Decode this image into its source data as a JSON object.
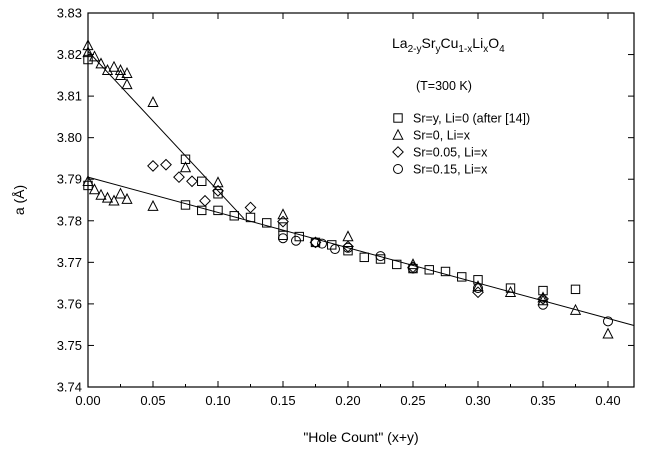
{
  "chart_data": {
    "type": "scatter",
    "xlabel": "\"Hole Count\" (x+y)",
    "ylabel": "a (Å)",
    "xlim": [
      0.0,
      0.42
    ],
    "ylim": [
      3.74,
      3.83
    ],
    "xticks": [
      "0.00",
      "0.05",
      "0.10",
      "0.15",
      "0.20",
      "0.25",
      "0.30",
      "0.35",
      "0.40"
    ],
    "yticks": [
      "3.74",
      "3.75",
      "3.76",
      "3.77",
      "3.78",
      "3.79",
      "3.80",
      "3.81",
      "3.82",
      "3.83"
    ],
    "grid": false,
    "legend_position": "right",
    "annotations": {
      "formula": {
        "main": "La",
        "sub1": "2-y",
        "mid1": "Sr",
        "sub2": "y",
        "mid2": "Cu",
        "sub3": "1-x",
        "mid3": "Li",
        "sub4": "x",
        "tail": "O",
        "sub5": "4"
      },
      "temperature": "(T=300 K)"
    },
    "series": [
      {
        "name": "Sr=y, Li=0 (after [14])",
        "marker": "square",
        "points": [
          [
            0.0,
            3.8188
          ],
          [
            0.0,
            3.7885
          ],
          [
            0.075,
            3.7948
          ],
          [
            0.075,
            3.7838
          ],
          [
            0.0875,
            3.7895
          ],
          [
            0.0875,
            3.7825
          ],
          [
            0.1,
            3.7865
          ],
          [
            0.1,
            3.7825
          ],
          [
            0.1125,
            3.7812
          ],
          [
            0.125,
            3.7808
          ],
          [
            0.1375,
            3.7795
          ],
          [
            0.15,
            3.7785
          ],
          [
            0.15,
            3.7765
          ],
          [
            0.1625,
            3.7762
          ],
          [
            0.175,
            3.7748
          ],
          [
            0.1875,
            3.7742
          ],
          [
            0.2,
            3.7728
          ],
          [
            0.2125,
            3.7712
          ],
          [
            0.225,
            3.7708
          ],
          [
            0.2375,
            3.7695
          ],
          [
            0.25,
            3.7685
          ],
          [
            0.2625,
            3.7682
          ],
          [
            0.275,
            3.7678
          ],
          [
            0.2875,
            3.7665
          ],
          [
            0.3,
            3.7658
          ],
          [
            0.325,
            3.7638
          ],
          [
            0.35,
            3.7632
          ],
          [
            0.375,
            3.7635
          ]
        ]
      },
      {
        "name": "Sr=0, Li=x",
        "marker": "triangle",
        "points": [
          [
            0.0,
            3.8222
          ],
          [
            0.0,
            3.8205
          ],
          [
            0.005,
            3.8195
          ],
          [
            0.01,
            3.8178
          ],
          [
            0.015,
            3.8162
          ],
          [
            0.02,
            3.817
          ],
          [
            0.025,
            3.815
          ],
          [
            0.025,
            3.8162
          ],
          [
            0.03,
            3.8155
          ],
          [
            0.03,
            3.8128
          ],
          [
            0.05,
            3.8085
          ],
          [
            0.075,
            3.7928
          ],
          [
            0.1,
            3.7892
          ],
          [
            0.0,
            3.7895
          ],
          [
            0.005,
            3.7875
          ],
          [
            0.01,
            3.7862
          ],
          [
            0.015,
            3.7855
          ],
          [
            0.02,
            3.7848
          ],
          [
            0.025,
            3.7865
          ],
          [
            0.03,
            3.7852
          ],
          [
            0.05,
            3.7835
          ],
          [
            0.15,
            3.7815
          ],
          [
            0.2,
            3.7762
          ],
          [
            0.25,
            3.7695
          ],
          [
            0.3,
            3.7642
          ],
          [
            0.325,
            3.7628
          ],
          [
            0.35,
            3.7615
          ],
          [
            0.35,
            3.7608
          ],
          [
            0.375,
            3.7585
          ],
          [
            0.4,
            3.7528
          ]
        ]
      },
      {
        "name": "Sr=0.05, Li=x",
        "marker": "diamond",
        "points": [
          [
            0.05,
            3.7932
          ],
          [
            0.06,
            3.7935
          ],
          [
            0.07,
            3.7905
          ],
          [
            0.08,
            3.7895
          ],
          [
            0.09,
            3.7848
          ],
          [
            0.1,
            3.7872
          ],
          [
            0.125,
            3.7832
          ],
          [
            0.15,
            3.7798
          ],
          [
            0.175,
            3.7748
          ],
          [
            0.2,
            3.7738
          ],
          [
            0.25,
            3.7688
          ],
          [
            0.3,
            3.7628
          ],
          [
            0.35,
            3.7612
          ]
        ]
      },
      {
        "name": "Sr=0.15, Li=x",
        "marker": "circle",
        "points": [
          [
            0.15,
            3.7758
          ],
          [
            0.16,
            3.7752
          ],
          [
            0.175,
            3.7748
          ],
          [
            0.18,
            3.7745
          ],
          [
            0.19,
            3.7732
          ],
          [
            0.2,
            3.7735
          ],
          [
            0.225,
            3.7715
          ],
          [
            0.25,
            3.7685
          ],
          [
            0.3,
            3.7638
          ],
          [
            0.35,
            3.7598
          ],
          [
            0.4,
            3.7558
          ]
        ]
      }
    ],
    "fit_lines": [
      {
        "x": [
          0.0,
          0.12
        ],
        "y": [
          3.8208,
          3.7805
        ]
      },
      {
        "x": [
          0.0,
          0.42
        ],
        "y": [
          3.7905,
          3.7548
        ]
      }
    ]
  }
}
